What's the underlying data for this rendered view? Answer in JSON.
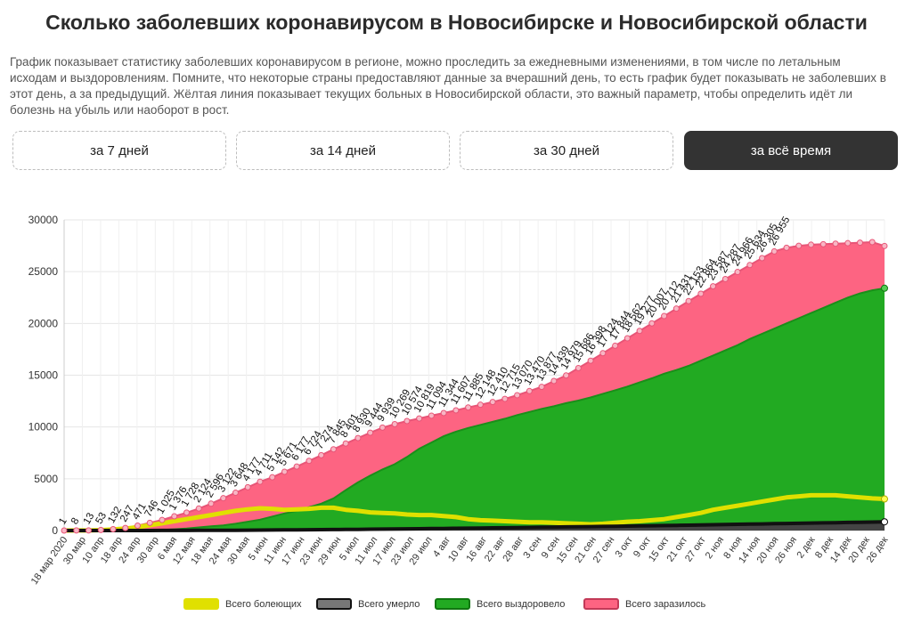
{
  "title": "Сколько заболевших коронавирусом в Новосибирске и Новосибирской области",
  "description": "График показывает статистику заболевших коронавирусом в регионе, можно проследить за ежедневными изменениями, в том числе по летальным исходам и выздоровлениям. Помните, что некоторые страны предоставляют данные за вчерашний день, то есть график будет показывать не заболевших в этот день, а за предыдущий. Жёлтая линия показывает текущих больных в Новосибирской области, это важный параметр, чтобы определить идёт ли болезнь на убыль или наоборот в рост.",
  "tabs": [
    {
      "label": "за 7 дней",
      "active": false
    },
    {
      "label": "за 14 дней",
      "active": false
    },
    {
      "label": "за 30 дней",
      "active": false
    },
    {
      "label": "за всё время",
      "active": true
    }
  ],
  "colors": {
    "infected": "#fd6482",
    "recovered": "#22aa22",
    "active": "#e0e000",
    "deaths": "#111111",
    "tab_active_bg": "#333333"
  },
  "chart_data": {
    "type": "area",
    "ylim": [
      0,
      30000
    ],
    "yticks": [
      "0",
      "5000",
      "10000",
      "15000",
      "20000",
      "25000",
      "30000"
    ],
    "grid": true,
    "legend_position": "bottom",
    "x_tick_labels": [
      "18 мар 2020",
      "30 мар",
      "10 апр",
      "18 апр",
      "24 апр",
      "30 апр",
      "6 мая",
      "12 мая",
      "18 мая",
      "24 мая",
      "30 мая",
      "5 июн",
      "11 июн",
      "17 июн",
      "23 июн",
      "29 июн",
      "5 июл",
      "11 июл",
      "17 июл",
      "23 июл",
      "29 июл",
      "4 авг",
      "10 авг",
      "16 авг",
      "22 авг",
      "28 авг",
      "3 сен",
      "9 сен",
      "15 сен",
      "21 сен",
      "27 сен",
      "3 окт",
      "9 окт",
      "15 окт",
      "21 окт",
      "27 окт",
      "2 ноя",
      "8 ноя",
      "14 ноя",
      "20 ноя",
      "26 ноя",
      "2 дек",
      "8 дек",
      "14 дек",
      "20 дек",
      "26 дек"
    ],
    "point_labels": [
      "1",
      "8",
      "13",
      "53",
      "132",
      "247",
      "471",
      "746",
      "1 025",
      "1 376",
      "1 728",
      "2 124",
      "2 596",
      "3 122",
      "3 648",
      "4 177",
      "4 711",
      "5 142",
      "5 671",
      "6 177",
      "6 724",
      "7 274",
      "7 845",
      "8 401",
      "8 930",
      "9 444",
      "9 939",
      "10 269",
      "10 574",
      "10 819",
      "11 094",
      "11 344",
      "11 607",
      "11 885",
      "12 148",
      "12 410",
      "12 715",
      "13 070",
      "13 470",
      "13 877",
      "14 439",
      "14 979",
      "15 686",
      "16 398",
      "17 124",
      "17 844",
      "18 562",
      "19 277",
      "20 007",
      "20 712",
      "21 431",
      "22 153",
      "22 864",
      "23 587",
      "24 287",
      "24 966",
      "25 634",
      "26 305",
      "26 955"
    ],
    "series": [
      {
        "name": "Всего болеющих",
        "key": "active",
        "values": [
          0,
          7,
          11,
          40,
          100,
          190,
          330,
          520,
          700,
          900,
          1100,
          1300,
          1500,
          1700,
          1900,
          2050,
          2150,
          2100,
          2000,
          2050,
          2100,
          2200,
          2200,
          2000,
          1900,
          1750,
          1700,
          1650,
          1550,
          1500,
          1500,
          1400,
          1300,
          1100,
          1000,
          950,
          900,
          850,
          800,
          800,
          750,
          700,
          650,
          600,
          650,
          750,
          850,
          900,
          1000,
          1100,
          1300,
          1500,
          1700,
          2000,
          2200,
          2400,
          2600,
          2800,
          3000,
          3200,
          3300,
          3400,
          3400,
          3400,
          3300,
          3200,
          3100,
          3050
        ]
      },
      {
        "name": "Всего умерло",
        "key": "deaths",
        "values": [
          0,
          0,
          0,
          0,
          0,
          1,
          2,
          4,
          6,
          9,
          12,
          16,
          20,
          25,
          30,
          36,
          42,
          50,
          58,
          66,
          75,
          85,
          95,
          105,
          115,
          126,
          137,
          148,
          160,
          172,
          185,
          198,
          212,
          226,
          240,
          255,
          270,
          286,
          302,
          318,
          334,
          350,
          366,
          382,
          398,
          414,
          430,
          448,
          466,
          484,
          502,
          520,
          540,
          560,
          580,
          600,
          620,
          640,
          660,
          680,
          700,
          720,
          740,
          760,
          780,
          800,
          820,
          840
        ]
      },
      {
        "name": "Всего выздоровело",
        "key": "recovered",
        "values": [
          0,
          0,
          0,
          0,
          1,
          3,
          10,
          30,
          60,
          120,
          200,
          300,
          400,
          500,
          650,
          850,
          1050,
          1350,
          1650,
          1900,
          2250,
          2600,
          3100,
          3900,
          4650,
          5300,
          5900,
          6400,
          7100,
          7900,
          8500,
          9100,
          9550,
          9900,
          10200,
          10500,
          10800,
          11150,
          11450,
          11750,
          12000,
          12300,
          12550,
          12850,
          13200,
          13550,
          13900,
          14300,
          14700,
          15150,
          15500,
          15900,
          16400,
          16900,
          17400,
          17900,
          18500,
          19000,
          19500,
          20000,
          20500,
          21000,
          21500,
          22000,
          22500,
          22900,
          23200,
          23400
        ]
      },
      {
        "name": "Всего заразилось",
        "key": "infected",
        "values": [
          1,
          8,
          13,
          53,
          132,
          247,
          471,
          746,
          1025,
          1376,
          1728,
          2124,
          2596,
          3122,
          3648,
          4177,
          4711,
          5142,
          5671,
          6177,
          6724,
          7274,
          7845,
          8401,
          8930,
          9444,
          9939,
          10269,
          10574,
          10819,
          11094,
          11344,
          11607,
          11885,
          12148,
          12410,
          12715,
          13070,
          13470,
          13877,
          14439,
          14979,
          15686,
          16398,
          17124,
          17844,
          18562,
          19277,
          20007,
          20712,
          21431,
          22153,
          22864,
          23587,
          24287,
          24966,
          25634,
          26305,
          26955,
          27300,
          27500,
          27600,
          27650,
          27700,
          27750,
          27800,
          27850,
          27480
        ]
      }
    ]
  },
  "legend": [
    {
      "label": "Всего болеющих",
      "key": "active"
    },
    {
      "label": "Всего умерло",
      "key": "deaths"
    },
    {
      "label": "Всего выздоровело",
      "key": "recovered"
    },
    {
      "label": "Всего заразилось",
      "key": "infected"
    }
  ]
}
